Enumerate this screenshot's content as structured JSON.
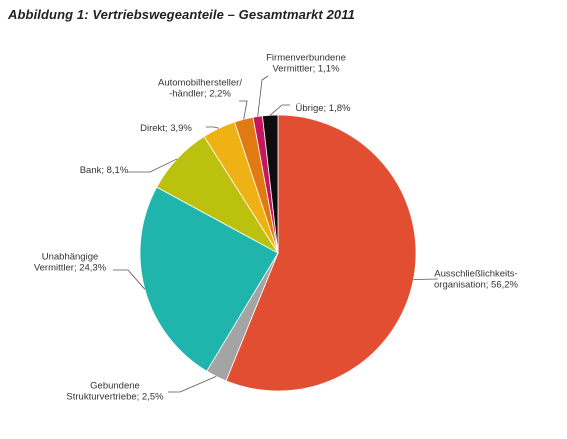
{
  "title": "Abbildung 1: Vertriebswegeanteile – Gesamtmarkt 2011",
  "chart_data": {
    "type": "pie",
    "title": "Abbildung 1: Vertriebswegeanteile – Gesamtmarkt 2011",
    "start_angle_deg": 0,
    "direction": "clockwise",
    "slices": [
      {
        "label": [
          "Ausschließlichkeits-",
          "organisation; 56,2%"
        ],
        "value": 56.2,
        "color": "#e24e32"
      },
      {
        "label": [
          "Gebundene",
          "Strukturvertriebe; 2,5%"
        ],
        "value": 2.5,
        "color": "#a4a4a4"
      },
      {
        "label": [
          "Unabhängige",
          "Vermittler; 24,3%"
        ],
        "value": 24.3,
        "color": "#1fb5ac"
      },
      {
        "label": [
          "Bank; 8,1%"
        ],
        "value": 8.1,
        "color": "#bcc10d"
      },
      {
        "label": [
          "Direkt; 3,9%"
        ],
        "value": 3.9,
        "color": "#efb114"
      },
      {
        "label": [
          "Automobilhersteller/",
          "-händler; 2,2%"
        ],
        "value": 2.2,
        "color": "#e07a12"
      },
      {
        "label": [
          "Firmenverbundene",
          "Vermittler; 1,1%"
        ],
        "value": 1.1,
        "color": "#c4175d"
      },
      {
        "label": [
          "Übrige; 1,8%"
        ],
        "value": 1.8,
        "color": "#0d0d0d"
      }
    ]
  }
}
